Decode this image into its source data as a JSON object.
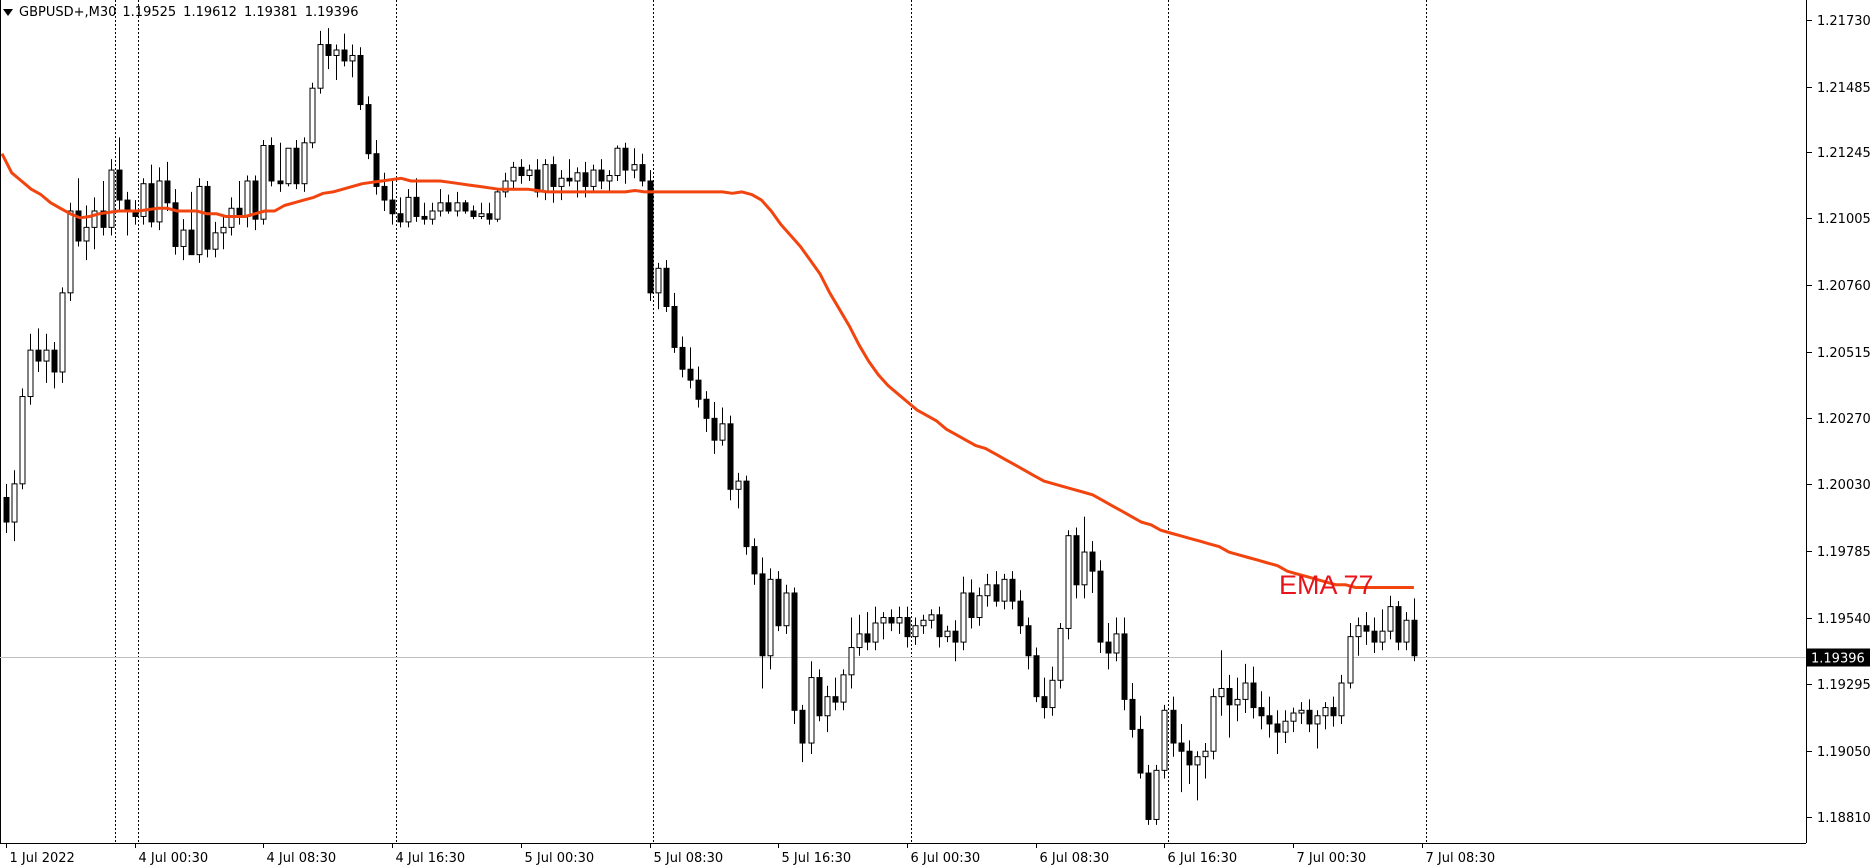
{
  "symbol_bar": {
    "symbol": "GBPUSD+,M30",
    "open": "1.19525",
    "high": "1.19612",
    "low": "1.19381",
    "close": "1.19396"
  },
  "price_label": "1.19396",
  "indicator_label": "EMA 77",
  "colors": {
    "background": "#ffffff",
    "axis": "#000000",
    "candle_bull_fill": "#ffffff",
    "candle_bear_fill": "#000000",
    "candle_stroke": "#000000",
    "ema": "#f2440f",
    "label": "#e8141c",
    "price_line": "#c0c0c0",
    "period_separator": "#000000"
  },
  "chart_data": {
    "type": "candlestick",
    "instrument": "GBPUSD+",
    "timeframe": "M30",
    "ylim": [
      1.1871,
      1.2173
    ],
    "y_ticks": [
      "1.21730",
      "1.21485",
      "1.21245",
      "1.21005",
      "1.20760",
      "1.20515",
      "1.20270",
      "1.20030",
      "1.19785",
      "1.19540",
      "1.19295",
      "1.19050",
      "1.18810"
    ],
    "x_ticks": [
      "1 Jul 2022",
      "4 Jul 00:30",
      "4 Jul 08:30",
      "4 Jul 16:30",
      "5 Jul 00:30",
      "5 Jul 08:30",
      "5 Jul 16:30",
      "6 Jul 00:30",
      "6 Jul 08:30",
      "6 Jul 16:30",
      "7 Jul 00:30",
      "7 Jul 08:30"
    ],
    "candles_per_label": 16,
    "day_separators_after_label": [
      0.82,
      1,
      3,
      5,
      7,
      9,
      11
    ],
    "current_price": 1.19396,
    "ema": {
      "name": "EMA 77",
      "period": 77,
      "values": [
        1.2124,
        1.2117,
        1.2114,
        1.2111,
        1.2109,
        1.2106,
        1.2104,
        1.2102,
        1.21005,
        1.2101,
        1.2102,
        1.21025,
        1.2103,
        1.2103,
        1.2103,
        1.21035,
        1.2104,
        1.2104,
        1.2103,
        1.2103,
        1.2103,
        1.2102,
        1.2102,
        1.2101,
        1.2101,
        1.2101,
        1.2102,
        1.2103,
        1.2103,
        1.2105,
        1.2106,
        1.2107,
        1.2108,
        1.21095,
        1.211,
        1.2111,
        1.2112,
        1.2113,
        1.21135,
        1.2114,
        1.21145,
        1.2115,
        1.2114,
        1.2114,
        1.2114,
        1.2114,
        1.21135,
        1.2113,
        1.21125,
        1.2112,
        1.21115,
        1.2111,
        1.2111,
        1.2111,
        1.2111,
        1.21105,
        1.211,
        1.211,
        1.211,
        1.211,
        1.211,
        1.211,
        1.211,
        1.211,
        1.211,
        1.21105,
        1.211,
        1.211,
        1.211,
        1.211,
        1.211,
        1.211,
        1.211,
        1.211,
        1.211,
        1.21095,
        1.211,
        1.2109,
        1.2107,
        1.2103,
        1.2098,
        1.2094,
        1.209,
        1.2085,
        1.208,
        1.2073,
        1.2067,
        1.2061,
        1.2054,
        1.2048,
        1.2043,
        1.2039,
        1.2036,
        1.2033,
        1.203,
        1.2028,
        1.2026,
        1.2023,
        1.2021,
        1.2019,
        1.2017,
        1.2016,
        1.2014,
        1.2012,
        1.201,
        1.2008,
        1.2006,
        1.2004,
        1.2003,
        1.2002,
        1.2001,
        1.2,
        1.1999,
        1.1997,
        1.1995,
        1.1993,
        1.1991,
        1.1989,
        1.1988,
        1.1986,
        1.1985,
        1.1984,
        1.1983,
        1.1982,
        1.1981,
        1.198,
        1.1978,
        1.1977,
        1.1976,
        1.1975,
        1.1974,
        1.1973,
        1.1971,
        1.197,
        1.1969,
        1.1968,
        1.1967,
        1.1966,
        1.1966,
        1.1965,
        1.1965,
        1.1965,
        1.1965,
        1.1965,
        1.1965,
        1.1965
      ]
    },
    "candles": [
      [
        1.1998,
        1.2003,
        1.1985,
        1.1989
      ],
      [
        1.1989,
        1.2008,
        1.1982,
        1.2003
      ],
      [
        1.2003,
        1.2038,
        1.2001,
        1.2035
      ],
      [
        1.2035,
        1.2058,
        1.2032,
        1.2052
      ],
      [
        1.2052,
        1.206,
        1.2044,
        1.2048
      ],
      [
        1.2048,
        1.2058,
        1.204,
        1.2052
      ],
      [
        1.2052,
        1.2055,
        1.2038,
        1.2044
      ],
      [
        1.2044,
        1.2075,
        1.204,
        1.2073
      ],
      [
        1.2073,
        1.2106,
        1.207,
        1.2103
      ],
      [
        1.2103,
        1.2115,
        1.209,
        1.2092
      ],
      [
        1.2092,
        1.2105,
        1.2085,
        1.2097
      ],
      [
        1.2097,
        1.2108,
        1.2089,
        1.2103
      ],
      [
        1.2103,
        1.2114,
        1.2094,
        1.2097
      ],
      [
        1.2097,
        1.2122,
        1.2094,
        1.2118
      ],
      [
        1.2118,
        1.213,
        1.2103,
        1.2107
      ],
      [
        1.2107,
        1.211,
        1.2094,
        1.2103
      ],
      [
        1.2103,
        1.2107,
        1.2098,
        1.2101
      ],
      [
        1.2101,
        1.2115,
        1.2098,
        1.2113
      ],
      [
        1.2113,
        1.212,
        1.2097,
        1.2099
      ],
      [
        1.2099,
        1.2119,
        1.2096,
        1.2114
      ],
      [
        1.2114,
        1.2121,
        1.2103,
        1.2106
      ],
      [
        1.2106,
        1.2111,
        1.2087,
        1.209
      ],
      [
        1.209,
        1.21,
        1.2085,
        1.2096
      ],
      [
        1.2096,
        1.211,
        1.2087,
        1.2087
      ],
      [
        1.2087,
        1.2115,
        1.2084,
        1.2112
      ],
      [
        1.2112,
        1.2114,
        1.2086,
        1.2089
      ],
      [
        1.2089,
        1.2099,
        1.2086,
        1.2095
      ],
      [
        1.2095,
        1.2101,
        1.2089,
        1.2097
      ],
      [
        1.2097,
        1.2108,
        1.2094,
        1.2104
      ],
      [
        1.2104,
        1.2114,
        1.2098,
        1.2101
      ],
      [
        1.2101,
        1.2116,
        1.2097,
        1.2114
      ],
      [
        1.2114,
        1.2116,
        1.2096,
        1.21
      ],
      [
        1.21,
        1.2129,
        1.2098,
        1.2127
      ],
      [
        1.2127,
        1.213,
        1.2112,
        1.2114
      ],
      [
        1.2114,
        1.2128,
        1.211,
        1.2113
      ],
      [
        1.2113,
        1.2126,
        1.2112,
        1.2126
      ],
      [
        1.2126,
        1.2129,
        1.2111,
        1.2113
      ],
      [
        1.2113,
        1.213,
        1.211,
        1.2128
      ],
      [
        1.2128,
        1.215,
        1.2126,
        1.2148
      ],
      [
        1.2148,
        1.2169,
        1.2146,
        1.2164
      ],
      [
        1.2164,
        1.217,
        1.2155,
        1.216
      ],
      [
        1.216,
        1.2164,
        1.2151,
        1.2162
      ],
      [
        1.2162,
        1.2168,
        1.2156,
        1.2158
      ],
      [
        1.2158,
        1.2164,
        1.2152,
        1.216
      ],
      [
        1.216,
        1.2163,
        1.214,
        1.2142
      ],
      [
        1.2142,
        1.2145,
        1.2122,
        1.2124
      ],
      [
        1.2124,
        1.2129,
        1.2109,
        1.2112
      ],
      [
        1.2112,
        1.2117,
        1.2103,
        1.2107
      ],
      [
        1.2107,
        1.2115,
        1.2098,
        1.2102
      ],
      [
        1.2102,
        1.2108,
        1.2097,
        1.2099
      ],
      [
        1.2099,
        1.2111,
        1.2097,
        1.2108
      ],
      [
        1.2108,
        1.2115,
        1.2099,
        1.2101
      ],
      [
        1.2101,
        1.2106,
        1.2098,
        1.21
      ],
      [
        1.21,
        1.2106,
        1.2098,
        1.2103
      ],
      [
        1.2103,
        1.2111,
        1.2101,
        1.2106
      ],
      [
        1.2106,
        1.2109,
        1.2102,
        1.2103
      ],
      [
        1.2103,
        1.211,
        1.2101,
        1.2106
      ],
      [
        1.2106,
        1.2107,
        1.2102,
        1.2103
      ],
      [
        1.2103,
        1.2105,
        1.21,
        1.2101
      ],
      [
        1.2101,
        1.2106,
        1.21,
        1.2102
      ],
      [
        1.2102,
        1.2106,
        1.2098,
        1.21
      ],
      [
        1.21,
        1.2111,
        1.2099,
        1.211
      ],
      [
        1.211,
        1.2117,
        1.2108,
        1.2114
      ],
      [
        1.2114,
        1.2121,
        1.2111,
        1.2119
      ],
      [
        1.2119,
        1.2122,
        1.2113,
        1.2116
      ],
      [
        1.2116,
        1.212,
        1.2114,
        1.2118
      ],
      [
        1.2118,
        1.2122,
        1.2108,
        1.211
      ],
      [
        1.211,
        1.2122,
        1.2107,
        1.212
      ],
      [
        1.212,
        1.2123,
        1.2106,
        1.2112
      ],
      [
        1.2112,
        1.2118,
        1.2107,
        1.2115
      ],
      [
        1.2115,
        1.2122,
        1.2112,
        1.2114
      ],
      [
        1.2114,
        1.2119,
        1.2108,
        1.2117
      ],
      [
        1.2117,
        1.2121,
        1.2108,
        1.2112
      ],
      [
        1.2112,
        1.212,
        1.211,
        1.2118
      ],
      [
        1.2118,
        1.2122,
        1.2111,
        1.2114
      ],
      [
        1.2114,
        1.2118,
        1.211,
        1.2116
      ],
      [
        1.2116,
        1.2127,
        1.2114,
        1.2126
      ],
      [
        1.2126,
        1.2128,
        1.2113,
        1.2118
      ],
      [
        1.2118,
        1.2126,
        1.2115,
        1.212
      ],
      [
        1.212,
        1.2124,
        1.2112,
        1.2114
      ],
      [
        1.2114,
        1.2118,
        1.207,
        1.2073
      ],
      [
        1.2073,
        1.2084,
        1.2067,
        1.2082
      ],
      [
        1.2082,
        1.2085,
        1.2066,
        1.2068
      ],
      [
        1.2068,
        1.2073,
        1.2051,
        1.2053
      ],
      [
        1.2053,
        1.2057,
        1.2042,
        1.2045
      ],
      [
        1.2045,
        1.2053,
        1.2038,
        1.2041
      ],
      [
        1.2041,
        1.2046,
        1.2031,
        1.2034
      ],
      [
        1.2034,
        1.2037,
        1.2022,
        1.2027
      ],
      [
        1.2027,
        1.2033,
        1.2014,
        1.2019
      ],
      [
        1.2019,
        1.2031,
        1.2017,
        1.2025
      ],
      [
        1.2025,
        1.2028,
        1.1997,
        1.2001
      ],
      [
        1.2001,
        1.2007,
        1.1994,
        1.2004
      ],
      [
        1.2004,
        1.2006,
        1.1977,
        1.198
      ],
      [
        1.198,
        1.1983,
        1.1966,
        1.197
      ],
      [
        1.197,
        1.1976,
        1.1928,
        1.194
      ],
      [
        1.194,
        1.1972,
        1.1935,
        1.1968
      ],
      [
        1.1968,
        1.1971,
        1.1949,
        1.1951
      ],
      [
        1.1951,
        1.1966,
        1.1948,
        1.1963
      ],
      [
        1.1963,
        1.1965,
        1.1915,
        1.192
      ],
      [
        1.192,
        1.1922,
        1.1901,
        1.1908
      ],
      [
        1.1908,
        1.1938,
        1.1904,
        1.1932
      ],
      [
        1.1932,
        1.1935,
        1.1916,
        1.1918
      ],
      [
        1.1918,
        1.1929,
        1.1912,
        1.1925
      ],
      [
        1.1925,
        1.1932,
        1.192,
        1.1923
      ],
      [
        1.1923,
        1.1935,
        1.192,
        1.1933
      ],
      [
        1.1933,
        1.1954,
        1.1928,
        1.1943
      ],
      [
        1.1943,
        1.1955,
        1.194,
        1.1948
      ],
      [
        1.1948,
        1.1956,
        1.1942,
        1.1945
      ],
      [
        1.1945,
        1.1958,
        1.1942,
        1.1952
      ],
      [
        1.1952,
        1.1956,
        1.1946,
        1.1954
      ],
      [
        1.1954,
        1.1957,
        1.1949,
        1.1952
      ],
      [
        1.1952,
        1.1958,
        1.1948,
        1.1954
      ],
      [
        1.1954,
        1.1958,
        1.1943,
        1.1947
      ],
      [
        1.1947,
        1.1954,
        1.1944,
        1.1951
      ],
      [
        1.1951,
        1.1955,
        1.1948,
        1.1953
      ],
      [
        1.1953,
        1.1957,
        1.195,
        1.1955
      ],
      [
        1.1955,
        1.1958,
        1.1943,
        1.1947
      ],
      [
        1.1947,
        1.1951,
        1.1945,
        1.1949
      ],
      [
        1.1949,
        1.1953,
        1.1938,
        1.1945
      ],
      [
        1.1945,
        1.1969,
        1.1942,
        1.1963
      ],
      [
        1.1963,
        1.1968,
        1.195,
        1.1954
      ],
      [
        1.1954,
        1.1965,
        1.1951,
        1.1962
      ],
      [
        1.1962,
        1.197,
        1.1958,
        1.1966
      ],
      [
        1.1966,
        1.1971,
        1.1958,
        1.196
      ],
      [
        1.196,
        1.197,
        1.1957,
        1.1968
      ],
      [
        1.1968,
        1.1971,
        1.1957,
        1.196
      ],
      [
        1.196,
        1.1964,
        1.1948,
        1.1951
      ],
      [
        1.1951,
        1.1954,
        1.1935,
        1.194
      ],
      [
        1.194,
        1.1943,
        1.1923,
        1.1925
      ],
      [
        1.1925,
        1.1932,
        1.1917,
        1.1921
      ],
      [
        1.1921,
        1.1936,
        1.1918,
        1.1931
      ],
      [
        1.1931,
        1.1952,
        1.1928,
        1.195
      ],
      [
        1.195,
        1.1986,
        1.1946,
        1.1984
      ],
      [
        1.1984,
        1.1987,
        1.1961,
        1.1966
      ],
      [
        1.1966,
        1.1991,
        1.1961,
        1.1978
      ],
      [
        1.1978,
        1.1982,
        1.1963,
        1.1971
      ],
      [
        1.1971,
        1.1975,
        1.1941,
        1.1945
      ],
      [
        1.1945,
        1.1952,
        1.1935,
        1.1941
      ],
      [
        1.1941,
        1.1954,
        1.1938,
        1.1948
      ],
      [
        1.1948,
        1.1954,
        1.192,
        1.1924
      ],
      [
        1.1924,
        1.193,
        1.191,
        1.1913
      ],
      [
        1.1913,
        1.1918,
        1.1895,
        1.1897
      ],
      [
        1.1897,
        1.19,
        1.1878,
        1.188
      ],
      [
        1.188,
        1.19,
        1.1878,
        1.1898
      ],
      [
        1.1898,
        1.1922,
        1.1895,
        1.192
      ],
      [
        1.192,
        1.1925,
        1.1903,
        1.1908
      ],
      [
        1.1908,
        1.1915,
        1.189,
        1.1905
      ],
      [
        1.1905,
        1.1909,
        1.1893,
        1.19
      ],
      [
        1.19,
        1.1905,
        1.1887,
        1.1903
      ],
      [
        1.1903,
        1.1908,
        1.1895,
        1.1905
      ],
      [
        1.1905,
        1.1928,
        1.1902,
        1.1925
      ],
      [
        1.1925,
        1.1942,
        1.1918,
        1.1928
      ],
      [
        1.1928,
        1.1933,
        1.191,
        1.1922
      ],
      [
        1.1922,
        1.1932,
        1.1916,
        1.1924
      ],
      [
        1.1924,
        1.1937,
        1.1919,
        1.193
      ],
      [
        1.193,
        1.1936,
        1.1917,
        1.1921
      ],
      [
        1.1921,
        1.1927,
        1.1913,
        1.1918
      ],
      [
        1.1918,
        1.1925,
        1.191,
        1.1915
      ],
      [
        1.1915,
        1.192,
        1.1904,
        1.1912
      ],
      [
        1.1912,
        1.192,
        1.1908,
        1.1916
      ],
      [
        1.1916,
        1.1921,
        1.1912,
        1.1919
      ],
      [
        1.1919,
        1.1923,
        1.1915,
        1.192
      ],
      [
        1.192,
        1.1924,
        1.1912,
        1.1915
      ],
      [
        1.1915,
        1.192,
        1.1906,
        1.1918
      ],
      [
        1.1918,
        1.1923,
        1.1913,
        1.1921
      ],
      [
        1.1921,
        1.1925,
        1.1914,
        1.1918
      ],
      [
        1.1918,
        1.1933,
        1.1915,
        1.193
      ],
      [
        1.193,
        1.1952,
        1.1928,
        1.1947
      ],
      [
        1.1947,
        1.1954,
        1.194,
        1.1951
      ],
      [
        1.1951,
        1.1956,
        1.1944,
        1.1949
      ],
      [
        1.1949,
        1.1954,
        1.1941,
        1.1945
      ],
      [
        1.1945,
        1.1957,
        1.1942,
        1.1949
      ],
      [
        1.1949,
        1.1962,
        1.1946,
        1.1958
      ],
      [
        1.1958,
        1.196,
        1.1942,
        1.1945
      ],
      [
        1.1945,
        1.1956,
        1.1942,
        1.1953
      ],
      [
        1.1953,
        1.1961,
        1.1938,
        1.194
      ]
    ]
  }
}
